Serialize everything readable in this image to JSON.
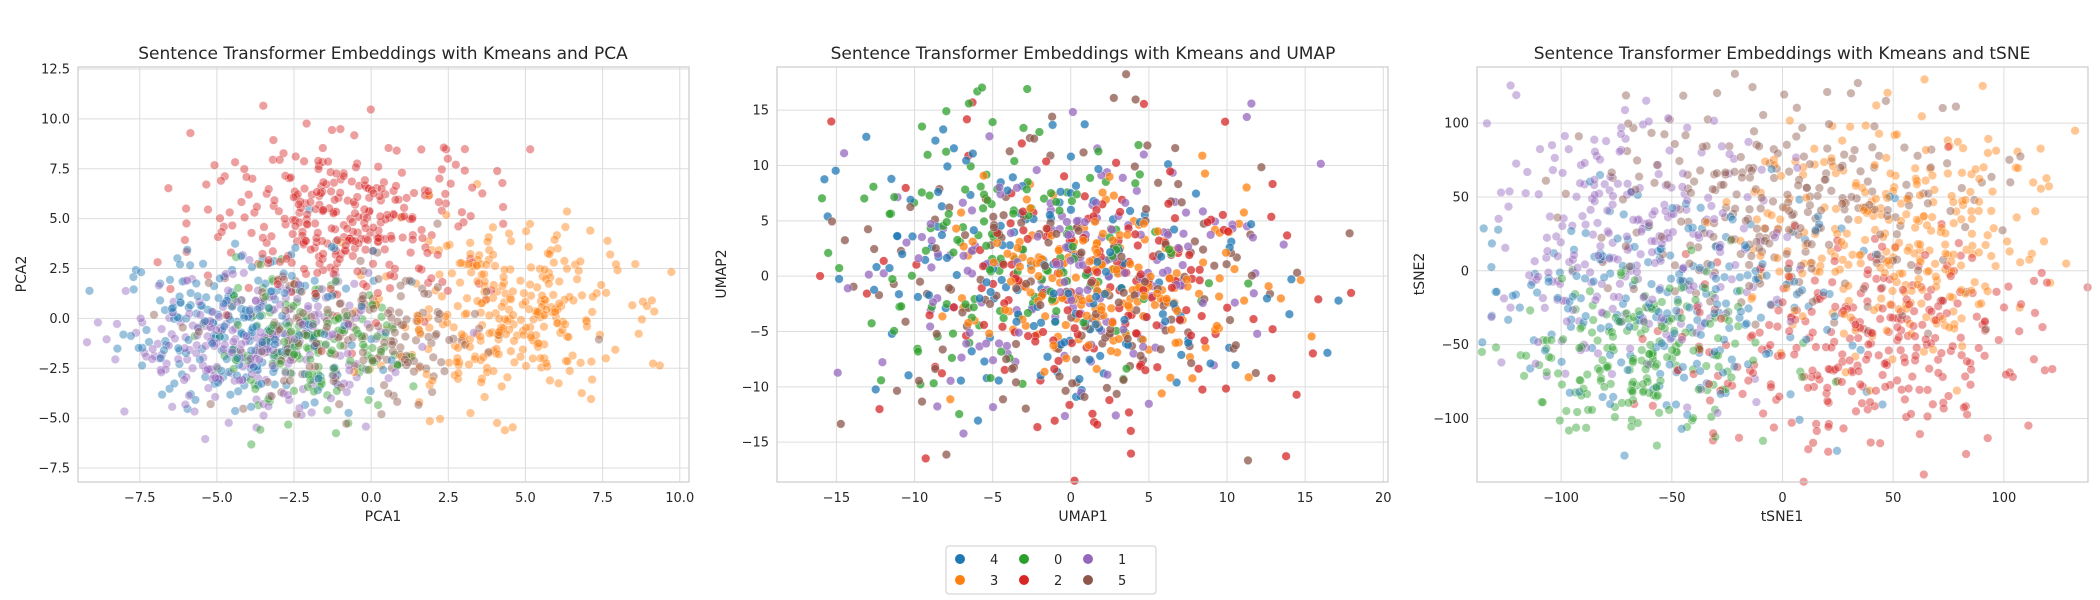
{
  "chart_data": [
    {
      "type": "scatter",
      "title": "Sentence Transformer Embeddings with Kmeans and PCA",
      "xlabel": "PCA1",
      "ylabel": "PCA2",
      "xlim": [
        -9.5,
        10.3
      ],
      "ylim": [
        -8.2,
        12.6
      ],
      "xticks": [
        -7.5,
        -5.0,
        -2.5,
        0.0,
        2.5,
        5.0,
        7.5,
        10.0
      ],
      "yticks": [
        -7.5,
        -5.0,
        -2.5,
        0.0,
        2.5,
        5.0,
        7.5,
        10.0,
        12.5
      ],
      "xtick_labels": [
        "−7.5",
        "−5.0",
        "−2.5",
        "0.0",
        "2.5",
        "5.0",
        "7.5",
        "10.0"
      ],
      "ytick_labels": [
        "−7.5",
        "−5.0",
        "−2.5",
        "0.0",
        "2.5",
        "5.0",
        "7.5",
        "10.0",
        "12.5"
      ],
      "grid": true,
      "clusters": [
        {
          "name": "4",
          "center": [
            -4.0,
            -0.5
          ],
          "spread": [
            2.0,
            2.0
          ],
          "count": 220
        },
        {
          "name": "3",
          "center": [
            4.2,
            0.2
          ],
          "spread": [
            1.9,
            2.2
          ],
          "count": 300
        },
        {
          "name": "0",
          "center": [
            -2.0,
            -1.5
          ],
          "spread": [
            1.6,
            1.6
          ],
          "count": 160
        },
        {
          "name": "2",
          "center": [
            -0.8,
            5.0
          ],
          "spread": [
            2.4,
            2.0
          ],
          "count": 320
        },
        {
          "name": "1",
          "center": [
            -3.8,
            -1.3
          ],
          "spread": [
            2.0,
            1.7
          ],
          "count": 260
        },
        {
          "name": "5",
          "center": [
            -0.5,
            -1.2
          ],
          "spread": [
            2.2,
            1.8
          ],
          "count": 180
        }
      ]
    },
    {
      "type": "scatter",
      "title": "Sentence Transformer Embeddings with Kmeans and UMAP",
      "xlabel": "UMAP1",
      "ylabel": "UMAP2",
      "xlim": [
        -18.8,
        20.3
      ],
      "ylim": [
        -18.6,
        18.9
      ],
      "xticks": [
        -15,
        -10,
        -5,
        0,
        5,
        10,
        15,
        20
      ],
      "yticks": [
        -15,
        -10,
        -5,
        0,
        5,
        10,
        15
      ],
      "xtick_labels": [
        "−15",
        "−10",
        "−5",
        "0",
        "5",
        "10",
        "15",
        "20"
      ],
      "ytick_labels": [
        "−15",
        "−10",
        "−5",
        "0",
        "5",
        "10",
        "15"
      ],
      "grid": true,
      "clusters": [
        {
          "name": "4",
          "center": [
            -1.0,
            0.0
          ],
          "spread": [
            6.5,
            6.0
          ],
          "count": 160
        },
        {
          "name": "3",
          "center": [
            2.5,
            0.0
          ],
          "spread": [
            4.5,
            4.0
          ],
          "count": 200
        },
        {
          "name": "0",
          "center": [
            -4.0,
            1.5
          ],
          "spread": [
            5.5,
            6.0
          ],
          "count": 150
        },
        {
          "name": "2",
          "center": [
            1.0,
            -1.0
          ],
          "spread": [
            6.0,
            6.0
          ],
          "count": 170
        },
        {
          "name": "1",
          "center": [
            -1.0,
            1.0
          ],
          "spread": [
            6.5,
            6.0
          ],
          "count": 170
        },
        {
          "name": "5",
          "center": [
            0.5,
            0.0
          ],
          "spread": [
            6.5,
            6.5
          ],
          "count": 160
        }
      ]
    },
    {
      "type": "scatter",
      "title": "Sentence Transformer Embeddings with Kmeans and tSNE",
      "xlabel": "tSNE1",
      "ylabel": "tSNE2",
      "xlim": [
        -138,
        138
      ],
      "ylim": [
        -143,
        138
      ],
      "xticks": [
        -100,
        -50,
        0,
        50,
        100
      ],
      "yticks": [
        -100,
        -50,
        0,
        50,
        100
      ],
      "xtick_labels": [
        "−100",
        "−50",
        "0",
        "50",
        "100"
      ],
      "ytick_labels": [
        "−100",
        "−50",
        "0",
        "50",
        "100"
      ],
      "grid": true,
      "clusters": [
        {
          "name": "4",
          "center": [
            -50,
            -20
          ],
          "spread": [
            40,
            35
          ],
          "count": 220
        },
        {
          "name": "3",
          "center": [
            55,
            25
          ],
          "spread": [
            35,
            40
          ],
          "count": 300
        },
        {
          "name": "0",
          "center": [
            -65,
            -55
          ],
          "spread": [
            30,
            30
          ],
          "count": 200
        },
        {
          "name": "2",
          "center": [
            40,
            -50
          ],
          "spread": [
            40,
            35
          ],
          "count": 300
        },
        {
          "name": "1",
          "center": [
            -75,
            20
          ],
          "spread": [
            35,
            45
          ],
          "count": 260
        },
        {
          "name": "5",
          "center": [
            0,
            50
          ],
          "spread": [
            45,
            40
          ],
          "count": 260
        }
      ]
    }
  ],
  "legend": {
    "placement": "bottom-center",
    "entries": [
      {
        "label": "4",
        "color": "#1f77b4"
      },
      {
        "label": "3",
        "color": "#ff7f0e"
      },
      {
        "label": "0",
        "color": "#2ca02c"
      },
      {
        "label": "2",
        "color": "#d62728"
      },
      {
        "label": "1",
        "color": "#9467bd"
      },
      {
        "label": "5",
        "color": "#8c564b"
      }
    ]
  },
  "colors": {
    "4": "#1f77b4",
    "3": "#ff7f0e",
    "0": "#2ca02c",
    "2": "#d62728",
    "1": "#9467bd",
    "5": "#8c564b",
    "grid": "#dddddd",
    "axes_edge": "#cccccc",
    "background": "#ffffff"
  }
}
